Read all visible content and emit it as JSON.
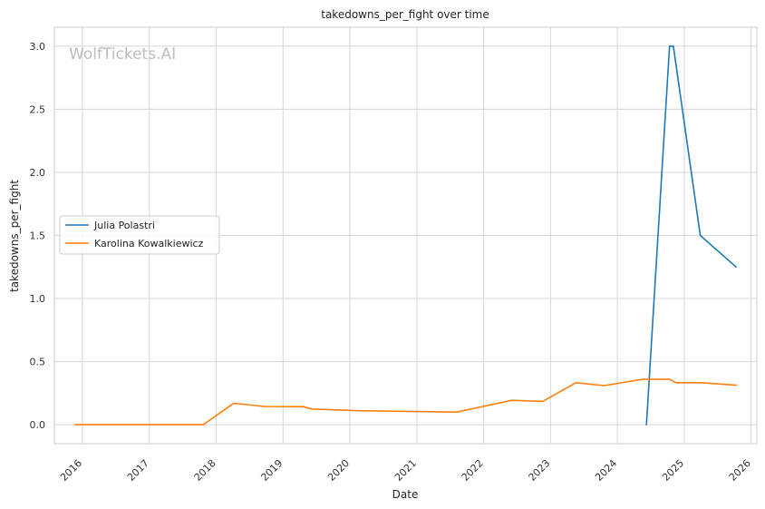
{
  "chart_data": {
    "type": "line",
    "title": "takedowns_per_fight over time",
    "xlabel": "Date",
    "ylabel": "takedowns_per_fight",
    "watermark": "WolfTickets.AI",
    "x_ticks": [
      "2016",
      "2017",
      "2018",
      "2019",
      "2020",
      "2021",
      "2022",
      "2023",
      "2024",
      "2025",
      "2026"
    ],
    "y_ticks": [
      "0.0",
      "0.5",
      "1.0",
      "1.5",
      "2.0",
      "2.5",
      "3.0"
    ],
    "xlim": [
      "2015-08-01",
      "2026-02-01"
    ],
    "ylim": [
      -0.15,
      3.15
    ],
    "grid": true,
    "legend_position": "center-left",
    "series": [
      {
        "name": "Julia Polastri",
        "color": "#1f77b4",
        "points": [
          {
            "x": "2024-06-08",
            "y": 0.0
          },
          {
            "x": "2024-10-12",
            "y": 3.0
          },
          {
            "x": "2024-11-02",
            "y": 3.0
          },
          {
            "x": "2025-03-29",
            "y": 1.5
          },
          {
            "x": "2025-10-11",
            "y": 1.25
          }
        ]
      },
      {
        "name": "Karolina Kowalkiewicz",
        "color": "#ff7f0e",
        "points": [
          {
            "x": "2015-11-21",
            "y": 0.0
          },
          {
            "x": "2017-10-21",
            "y": 0.0
          },
          {
            "x": "2018-04-07",
            "y": 0.17
          },
          {
            "x": "2018-09-22",
            "y": 0.145
          },
          {
            "x": "2019-04-20",
            "y": 0.143
          },
          {
            "x": "2019-06-08",
            "y": 0.125
          },
          {
            "x": "2020-02-22",
            "y": 0.111
          },
          {
            "x": "2021-08-07",
            "y": 0.1
          },
          {
            "x": "2022-06-04",
            "y": 0.194
          },
          {
            "x": "2022-11-19",
            "y": 0.185
          },
          {
            "x": "2023-05-20",
            "y": 0.333
          },
          {
            "x": "2023-10-21",
            "y": 0.31
          },
          {
            "x": "2024-05-18",
            "y": 0.36
          },
          {
            "x": "2024-10-12",
            "y": 0.36
          },
          {
            "x": "2024-11-16",
            "y": 0.333
          },
          {
            "x": "2025-04-05",
            "y": 0.333
          },
          {
            "x": "2025-10-11",
            "y": 0.313
          }
        ]
      }
    ]
  }
}
